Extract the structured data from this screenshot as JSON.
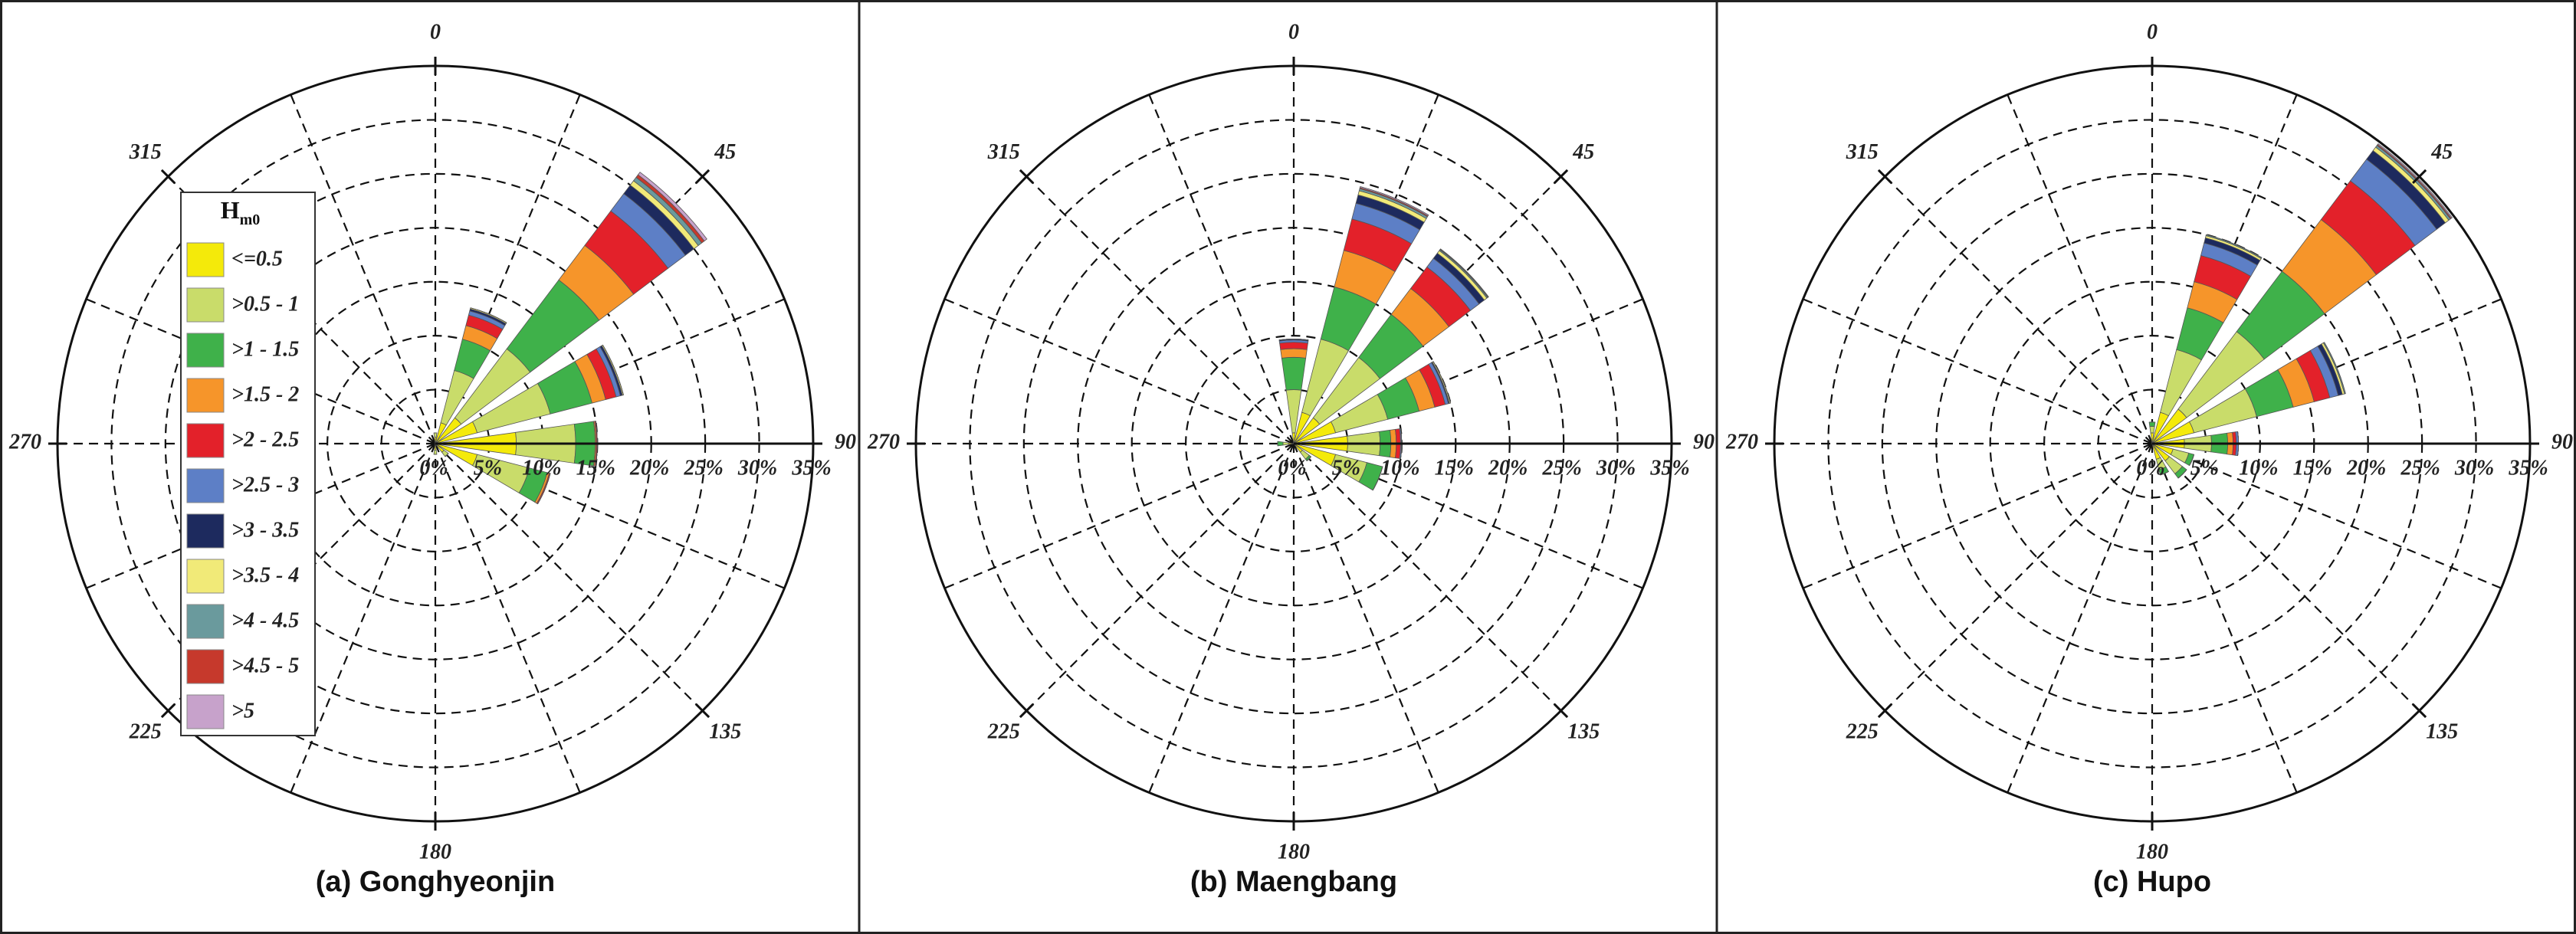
{
  "chart_data": [
    {
      "type": "polar_bar",
      "title": "(a) Gonghyeonjin",
      "legend": "center left",
      "legend_title": "H",
      "legend_title_sub": "m0",
      "x": [
        0,
        22.5,
        45,
        67.5,
        90,
        112.5,
        135,
        180
      ],
      "rlim": [
        0,
        35
      ],
      "rticks": [
        {
          "value": 0,
          "label": "0%"
        },
        {
          "value": 5,
          "label": "5%"
        },
        {
          "value": 10,
          "label": "10%"
        },
        {
          "value": 15,
          "label": "15%"
        },
        {
          "value": 20,
          "label": "20%"
        },
        {
          "value": 25,
          "label": "25%"
        },
        {
          "value": 30,
          "label": "30%"
        },
        {
          "value": 35,
          "label": "35%"
        }
      ],
      "thetaticks": [
        0,
        45,
        90,
        135,
        180,
        225,
        270,
        315
      ],
      "series": [
        {
          "name": "<=0.5",
          "color": "#f4ea0a",
          "values": [
            0.6,
            2,
            3,
            4,
            7.5,
            4,
            1,
            0.6
          ]
        },
        {
          "name": ">0.5 - 1",
          "color": "#c9dc6a",
          "values": [
            0.4,
            5,
            8,
            7,
            5.5,
            5,
            0.5,
            0.4
          ]
        },
        {
          "name": ">1 - 1.5",
          "color": "#3fb14a",
          "values": [
            0,
            3,
            8,
            4,
            1.8,
            1.7,
            0,
            0
          ]
        },
        {
          "name": ">1.5 - 2",
          "color": "#f6952a",
          "values": [
            0,
            1.3,
            4,
            1.3,
            0.1,
            0.2,
            0,
            0
          ]
        },
        {
          "name": ">2 - 2.5",
          "color": "#e3212a",
          "values": [
            0,
            1,
            4,
            1,
            0.1,
            0.1,
            0,
            0
          ]
        },
        {
          "name": ">2.5 - 3",
          "color": "#5d7fc6",
          "values": [
            0,
            0.4,
            2,
            0.4,
            0,
            0,
            0,
            0
          ]
        },
        {
          "name": ">3 - 3.5",
          "color": "#1d2a5e",
          "values": [
            0,
            0.2,
            1,
            0.2,
            0,
            0,
            0,
            0
          ]
        },
        {
          "name": ">3.5 - 4",
          "color": "#f1ea78",
          "values": [
            0,
            0.1,
            0.5,
            0.1,
            0,
            0,
            0,
            0
          ]
        },
        {
          "name": ">4 - 4.5",
          "color": "#6a9a9d",
          "values": [
            0,
            0,
            0.4,
            0,
            0,
            0,
            0,
            0
          ]
        },
        {
          "name": ">4.5 - 5",
          "color": "#c6392c",
          "values": [
            0,
            0,
            0.3,
            0,
            0,
            0,
            0,
            0
          ]
        },
        {
          "name": ">5",
          "color": "#c7a2cb",
          "values": [
            0,
            0,
            0.3,
            0,
            0,
            0,
            0,
            0
          ]
        }
      ]
    },
    {
      "type": "polar_bar",
      "title": "(b) Maengbang",
      "x": [
        0,
        22.5,
        45,
        67.5,
        90,
        112.5,
        135,
        270
      ],
      "rlim": [
        0,
        35
      ],
      "rticks": [
        {
          "value": 0,
          "label": "0%"
        },
        {
          "value": 5,
          "label": "5%"
        },
        {
          "value": 10,
          "label": "10%"
        },
        {
          "value": 15,
          "label": "15%"
        },
        {
          "value": 20,
          "label": "20%"
        },
        {
          "value": 25,
          "label": "25%"
        },
        {
          "value": 30,
          "label": "30%"
        },
        {
          "value": 35,
          "label": "35%"
        }
      ],
      "thetaticks": [
        0,
        45,
        90,
        135,
        180,
        225,
        270,
        315
      ],
      "series": [
        {
          "name": "<=0.5",
          "color": "#f4ea0a",
          "values": [
            1,
            3,
            3,
            4,
            5,
            4,
            1,
            0.5
          ]
        },
        {
          "name": ">0.5 - 1",
          "color": "#c9dc6a",
          "values": [
            4,
            7,
            7,
            5,
            3,
            3,
            0.8,
            0.5
          ]
        },
        {
          "name": ">1 - 1.5",
          "color": "#3fb14a",
          "values": [
            3,
            5,
            5,
            3,
            1,
            1.5,
            0.2,
            0.5
          ]
        },
        {
          "name": ">1.5 - 2",
          "color": "#f6952a",
          "values": [
            0.8,
            3.5,
            3,
            1.5,
            0.5,
            0,
            0,
            0
          ]
        },
        {
          "name": ">2 - 2.5",
          "color": "#e3212a",
          "values": [
            0.6,
            3,
            2.5,
            1,
            0.4,
            0,
            0,
            0
          ]
        },
        {
          "name": ">2.5 - 3",
          "color": "#5d7fc6",
          "values": [
            0.2,
            1.5,
            1,
            0.3,
            0.1,
            0,
            0,
            0
          ]
        },
        {
          "name": ">3 - 3.5",
          "color": "#1d2a5e",
          "values": [
            0.1,
            0.8,
            0.6,
            0.1,
            0,
            0,
            0,
            0
          ]
        },
        {
          "name": ">3.5 - 4",
          "color": "#f1ea78",
          "values": [
            0,
            0.4,
            0.3,
            0.1,
            0,
            0,
            0,
            0
          ]
        },
        {
          "name": ">4 - 4.5",
          "color": "#6a9a9d",
          "values": [
            0,
            0.2,
            0.1,
            0,
            0,
            0,
            0,
            0
          ]
        },
        {
          "name": ">4.5 - 5",
          "color": "#c6392c",
          "values": [
            0,
            0.1,
            0.05,
            0,
            0,
            0,
            0,
            0
          ]
        },
        {
          "name": ">5",
          "color": "#c7a2cb",
          "values": [
            0,
            0.1,
            0.05,
            0,
            0,
            0,
            0,
            0
          ]
        }
      ]
    },
    {
      "type": "polar_bar",
      "title": "(c) Hupo",
      "x": [
        0,
        22.5,
        45,
        67.5,
        90,
        112.5,
        135,
        157.5
      ],
      "rlim": [
        0,
        35
      ],
      "rticks": [
        {
          "value": 0,
          "label": "0%"
        },
        {
          "value": 5,
          "label": "5%"
        },
        {
          "value": 10,
          "label": "10%"
        },
        {
          "value": 15,
          "label": "15%"
        },
        {
          "value": 20,
          "label": "20%"
        },
        {
          "value": 25,
          "label": "25%"
        },
        {
          "value": 30,
          "label": "30%"
        },
        {
          "value": 35,
          "label": "35%"
        }
      ],
      "thetaticks": [
        0,
        45,
        90,
        135,
        180,
        225,
        270,
        315
      ],
      "series": [
        {
          "name": "<=0.5",
          "color": "#f4ea0a",
          "values": [
            1,
            3,
            4,
            4,
            3,
            2,
            2,
            1.5
          ]
        },
        {
          "name": ">0.5 - 1",
          "color": "#c9dc6a",
          "values": [
            0.6,
            6,
            9,
            6,
            2.5,
            1.5,
            1.5,
            1
          ]
        },
        {
          "name": ">1 - 1.5",
          "color": "#3fb14a",
          "values": [
            0.4,
            4,
            7,
            3.5,
            1.5,
            0.5,
            0.5,
            0.5
          ]
        },
        {
          "name": ">1.5 - 2",
          "color": "#f6952a",
          "values": [
            0,
            2.5,
            6,
            2,
            0.5,
            0,
            0,
            0
          ]
        },
        {
          "name": ">2 - 2.5",
          "color": "#e3212a",
          "values": [
            0,
            2.5,
            4.5,
            1.5,
            0.3,
            0,
            0,
            0
          ]
        },
        {
          "name": ">2.5 - 3",
          "color": "#5d7fc6",
          "values": [
            0,
            1.2,
            2.5,
            0.8,
            0.2,
            0,
            0,
            0
          ]
        },
        {
          "name": ">3 - 3.5",
          "color": "#1d2a5e",
          "values": [
            0,
            0.5,
            1,
            0.4,
            0,
            0,
            0,
            0
          ]
        },
        {
          "name": ">3.5 - 4",
          "color": "#f1ea78",
          "values": [
            0,
            0.2,
            0.4,
            0.2,
            0,
            0,
            0,
            0
          ]
        },
        {
          "name": ">4 - 4.5",
          "color": "#6a9a9d",
          "values": [
            0,
            0.1,
            0.2,
            0.1,
            0,
            0,
            0,
            0
          ]
        },
        {
          "name": ">4.5 - 5",
          "color": "#c6392c",
          "values": [
            0,
            0,
            0.1,
            0,
            0,
            0,
            0,
            0
          ]
        },
        {
          "name": ">5",
          "color": "#c7a2cb",
          "values": [
            0,
            0,
            0.1,
            0,
            0,
            0,
            0,
            0
          ]
        }
      ]
    }
  ]
}
